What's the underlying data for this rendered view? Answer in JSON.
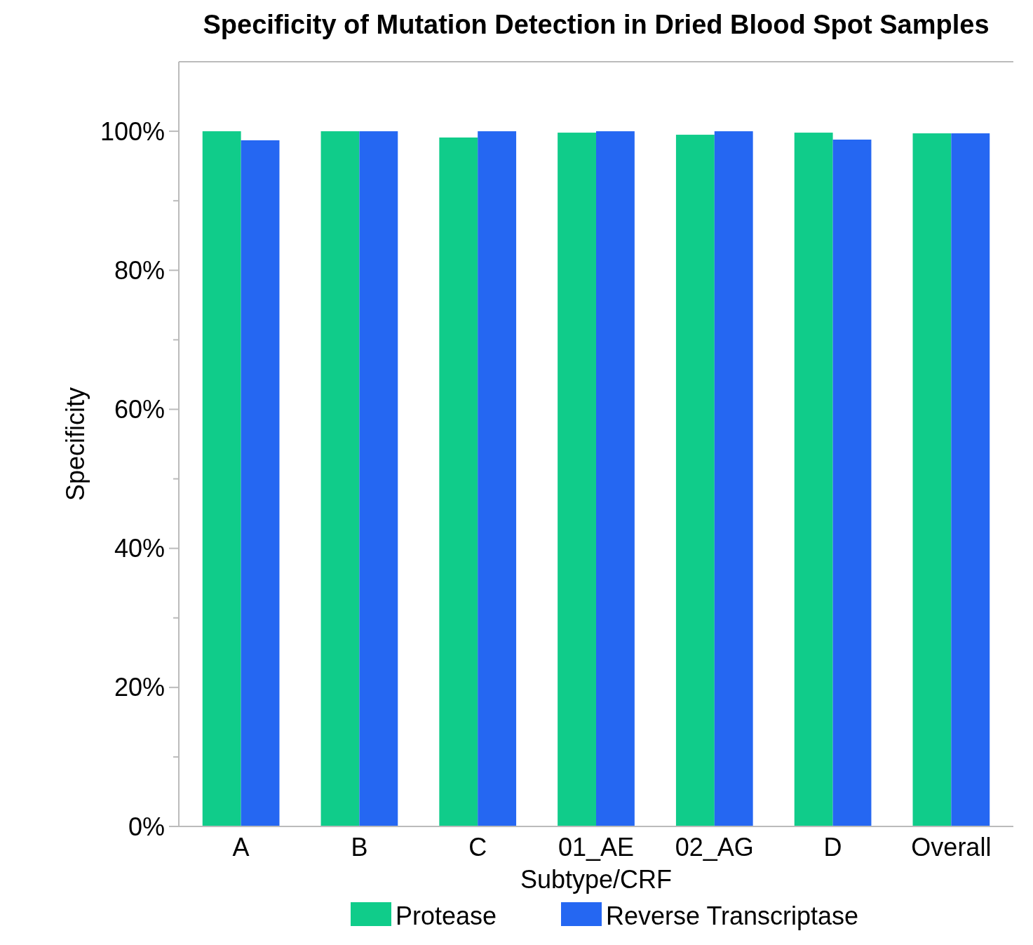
{
  "chart_data": {
    "type": "bar",
    "title": "Specificity of Mutation Detection in Dried Blood Spot Samples",
    "xlabel": "Subtype/CRF",
    "ylabel": "Specificity",
    "categories": [
      "A",
      "B",
      "C",
      "01_AE",
      "02_AG",
      "D",
      "Overall"
    ],
    "series": [
      {
        "name": "Protease",
        "color": "#10cc8a",
        "values": [
          100,
          100,
          99.1,
          99.8,
          99.5,
          99.8,
          99.7
        ]
      },
      {
        "name": "Reverse Transcriptase",
        "color": "#2567f2",
        "values": [
          98.7,
          100,
          100,
          100,
          100,
          98.8,
          99.7
        ]
      }
    ],
    "ylim": [
      0,
      110
    ],
    "yticks": [
      {
        "value": 0,
        "label": "0%"
      },
      {
        "value": 10,
        "label": null
      },
      {
        "value": 20,
        "label": "20%"
      },
      {
        "value": 30,
        "label": null
      },
      {
        "value": 40,
        "label": "40%"
      },
      {
        "value": 50,
        "label": null
      },
      {
        "value": 60,
        "label": "60%"
      },
      {
        "value": 70,
        "label": null
      },
      {
        "value": 80,
        "label": "80%"
      },
      {
        "value": 90,
        "label": null
      },
      {
        "value": 100,
        "label": "100%"
      }
    ],
    "grid": false,
    "legend": "bottom"
  }
}
